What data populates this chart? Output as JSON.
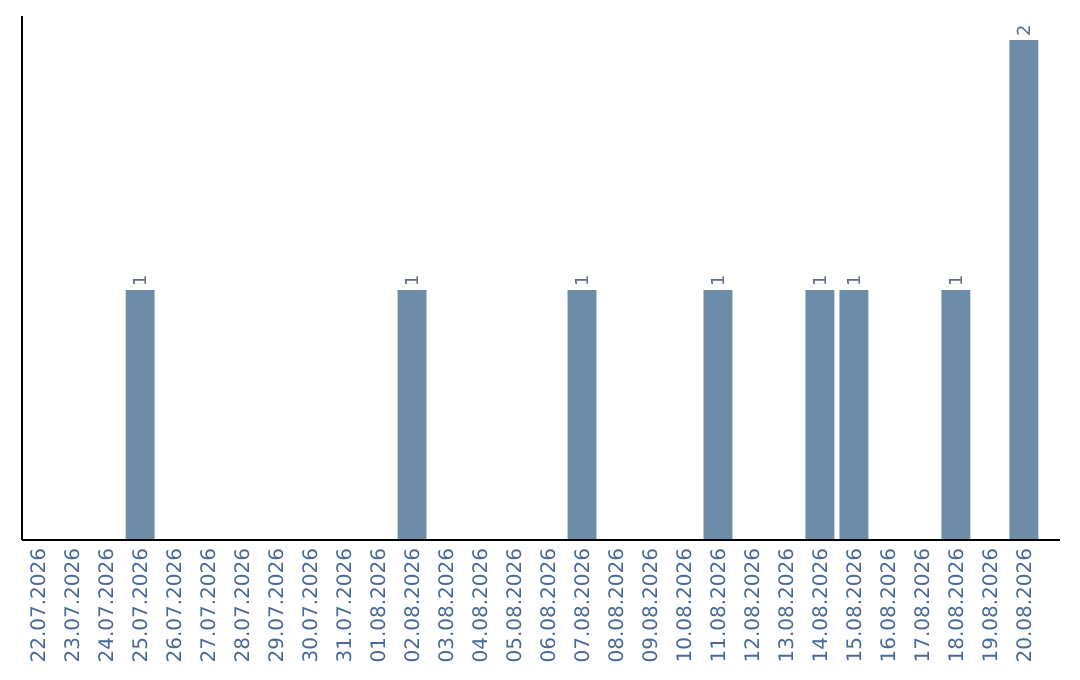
{
  "chart_data": {
    "type": "bar",
    "categories": [
      "22.07.2026",
      "23.07.2026",
      "24.07.2026",
      "25.07.2026",
      "26.07.2026",
      "27.07.2026",
      "28.07.2026",
      "29.07.2026",
      "30.07.2026",
      "31.07.2026",
      "01.08.2026",
      "02.08.2026",
      "03.08.2026",
      "04.08.2026",
      "05.08.2026",
      "06.08.2026",
      "07.08.2026",
      "08.08.2026",
      "09.08.2026",
      "10.08.2026",
      "11.08.2026",
      "12.08.2026",
      "13.08.2026",
      "14.08.2026",
      "15.08.2026",
      "16.08.2026",
      "17.08.2026",
      "18.08.2026",
      "19.08.2026",
      "20.08.2026"
    ],
    "values": [
      0,
      0,
      0,
      1,
      0,
      0,
      0,
      0,
      0,
      0,
      0,
      1,
      0,
      0,
      0,
      0,
      1,
      0,
      0,
      0,
      1,
      0,
      0,
      1,
      1,
      0,
      0,
      1,
      0,
      2
    ],
    "value_labels": [
      null,
      null,
      null,
      "1",
      null,
      null,
      null,
      null,
      null,
      null,
      null,
      "1",
      null,
      null,
      null,
      null,
      "1",
      null,
      null,
      null,
      "1",
      null,
      null,
      "1",
      "1",
      null,
      null,
      "1",
      null,
      "2"
    ],
    "color": "#6c8ca8",
    "tick_labels": "x"
  }
}
